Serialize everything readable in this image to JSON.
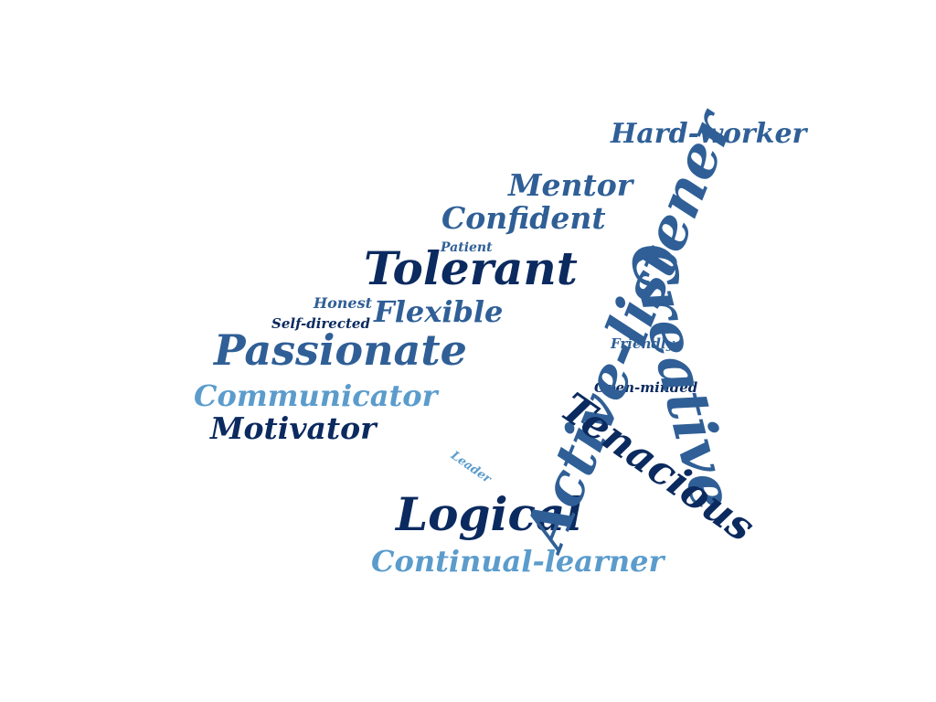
{
  "cloud": {
    "words": {
      "hard_worker": "Hard-worker",
      "mentor": "Mentor",
      "confident": "Confident",
      "patient": "Patient",
      "tolerant": "Tolerant",
      "honest": "Honest",
      "flexible": "Flexible",
      "self_directed": "Self-directed",
      "passionate": "Passionate",
      "communicator": "Communicator",
      "motivator": "Motivator",
      "friendly": "Friendly",
      "open_minded": "Open-minded",
      "leader": "Leader",
      "logical": "Logical",
      "continual_learner": "Continual-learner",
      "active_listener": "Active-listener",
      "creative": "Creative",
      "tenacious": "Tenacious"
    },
    "colors": {
      "dark_navy": "#0b2a5f",
      "mid_blue": "#2f5f96",
      "light_blue": "#5b9ccc"
    }
  }
}
